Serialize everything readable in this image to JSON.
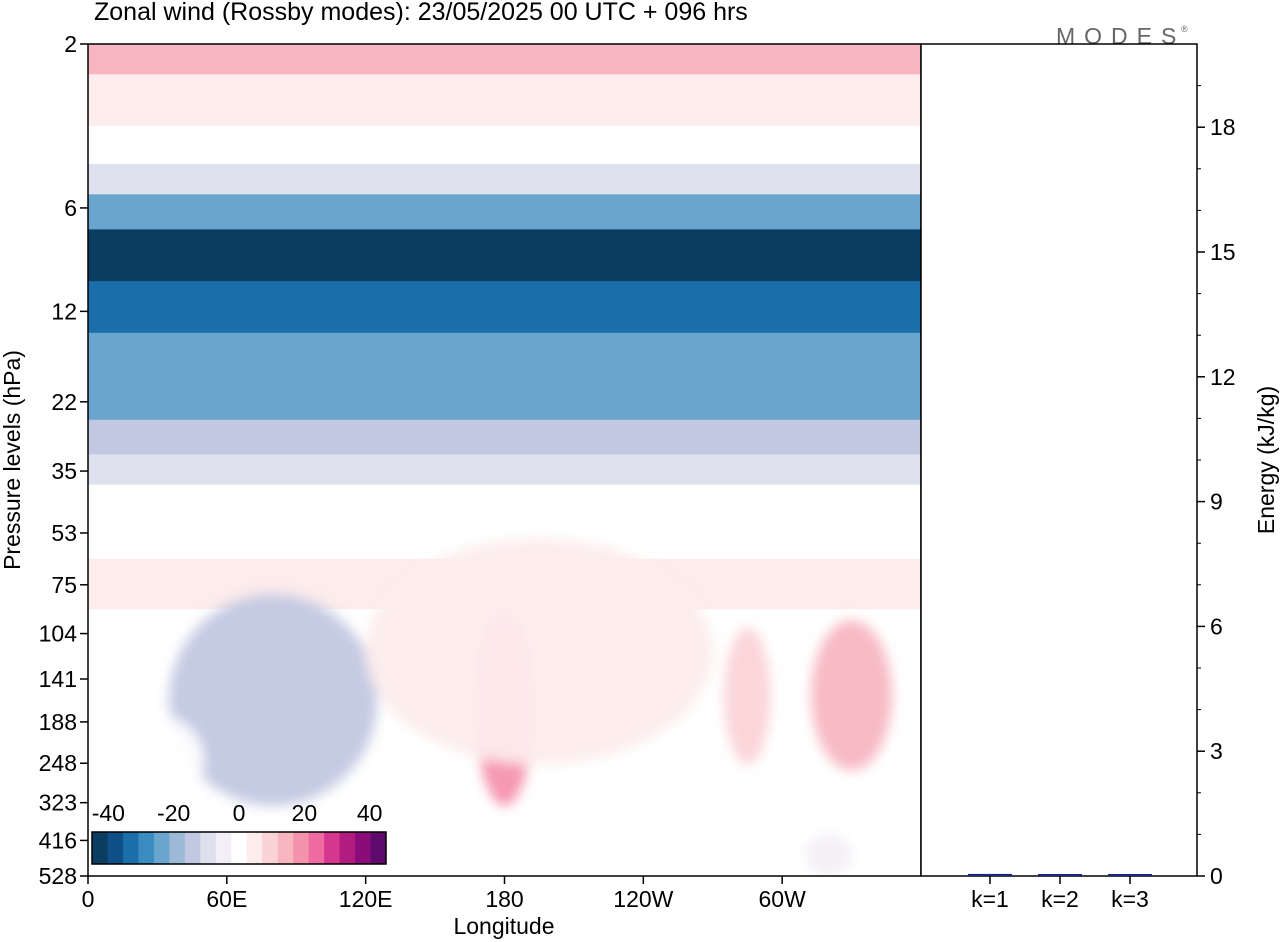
{
  "chart_data": [
    {
      "type": "heatmap",
      "title": "Zonal wind (Rossby modes):  23/05/2025  00 UTC  + 096 hrs",
      "xlabel": "Longitude",
      "ylabel": "Pressure levels (hPa)",
      "x_ticks": [
        "0",
        "60E",
        "120E",
        "180",
        "120W",
        "60W"
      ],
      "x_tick_degrees": [
        0,
        60,
        120,
        180,
        240,
        300
      ],
      "x_range_degrees": [
        0,
        360
      ],
      "y_ticks": [
        "2",
        "6",
        "12",
        "22",
        "35",
        "53",
        "75",
        "104",
        "141",
        "188",
        "248",
        "323",
        "416",
        "528"
      ],
      "y_scale": "log",
      "y_range_hpa": [
        2,
        528
      ],
      "colorbar": {
        "tick_labels": [
          "-40",
          "-20",
          "0",
          "20",
          "40"
        ],
        "tick_values": [
          -40,
          -20,
          0,
          20,
          40
        ],
        "colors": [
          "#0b3d63",
          "#0d4f86",
          "#1a6fab",
          "#3a8bbf",
          "#6aa5cd",
          "#9cbad8",
          "#c2c8e2",
          "#dfe0ee",
          "#f3eff6",
          "#ffffff",
          "#fdecec",
          "#fbd3d6",
          "#f8b6c1",
          "#f592ae",
          "#ee6aa0",
          "#d4378d",
          "#b01c80",
          "#8a0c79",
          "#5e0a6d"
        ]
      },
      "bands": [
        {
          "level_hpa": 2,
          "wind": 12
        },
        {
          "level_hpa": 3,
          "wind": 6
        },
        {
          "level_hpa": 4,
          "wind": 1
        },
        {
          "level_hpa": 5,
          "wind": -10
        },
        {
          "level_hpa": 6,
          "wind": -24
        },
        {
          "level_hpa": 8,
          "wind": -38
        },
        {
          "level_hpa": 12,
          "wind": -30
        },
        {
          "level_hpa": 16,
          "wind": -24
        },
        {
          "level_hpa": 22,
          "wind": -22
        },
        {
          "level_hpa": 28,
          "wind": -14
        },
        {
          "level_hpa": 35,
          "wind": -8
        },
        {
          "level_hpa": 42,
          "wind": -2
        },
        {
          "level_hpa": 53,
          "wind": 2
        },
        {
          "level_hpa": 75,
          "wind": 4
        },
        {
          "level_hpa": 104,
          "wind": 2
        },
        {
          "level_hpa": 528,
          "wind": 0
        }
      ],
      "features": [
        {
          "lon": 80,
          "level_hpa": 140,
          "wind": -14,
          "lon_width": 90,
          "level_span_hpa": [
            80,
            330
          ]
        },
        {
          "lon": 180,
          "level_hpa": 150,
          "wind": 16,
          "lon_width": 25,
          "level_span_hpa": [
            90,
            330
          ]
        },
        {
          "lon": 195,
          "level_hpa": 90,
          "wind": 6,
          "lon_width": 150,
          "level_span_hpa": [
            55,
            250
          ]
        },
        {
          "lon": 285,
          "level_hpa": 150,
          "wind": 10,
          "lon_width": 20,
          "level_span_hpa": [
            100,
            250
          ]
        },
        {
          "lon": 330,
          "level_hpa": 140,
          "wind": 14,
          "lon_width": 35,
          "level_span_hpa": [
            95,
            260
          ]
        },
        {
          "lon": 30,
          "level_hpa": 250,
          "wind": 2,
          "lon_width": 40,
          "level_span_hpa": [
            180,
            330
          ]
        },
        {
          "lon": 230,
          "level_hpa": 420,
          "wind": -2,
          "lon_width": 30,
          "level_span_hpa": [
            300,
            528
          ]
        },
        {
          "lon": 320,
          "level_hpa": 480,
          "wind": -3,
          "lon_width": 20,
          "level_span_hpa": [
            400,
            528
          ]
        }
      ]
    },
    {
      "type": "bar",
      "categories": [
        "k=1",
        "k=2",
        "k=3"
      ],
      "values": [
        0.05,
        0.04,
        0.03
      ],
      "ylabel": "Energy (kJ/kg)",
      "ylim": [
        0,
        20
      ],
      "y_ticks": [
        "0",
        "3",
        "6",
        "9",
        "12",
        "15",
        "18"
      ],
      "y_tick_values": [
        0,
        3,
        6,
        9,
        12,
        15,
        18
      ],
      "bar_color": "#1a237e"
    }
  ],
  "logo_text": "MODES",
  "logo_mark": "®"
}
